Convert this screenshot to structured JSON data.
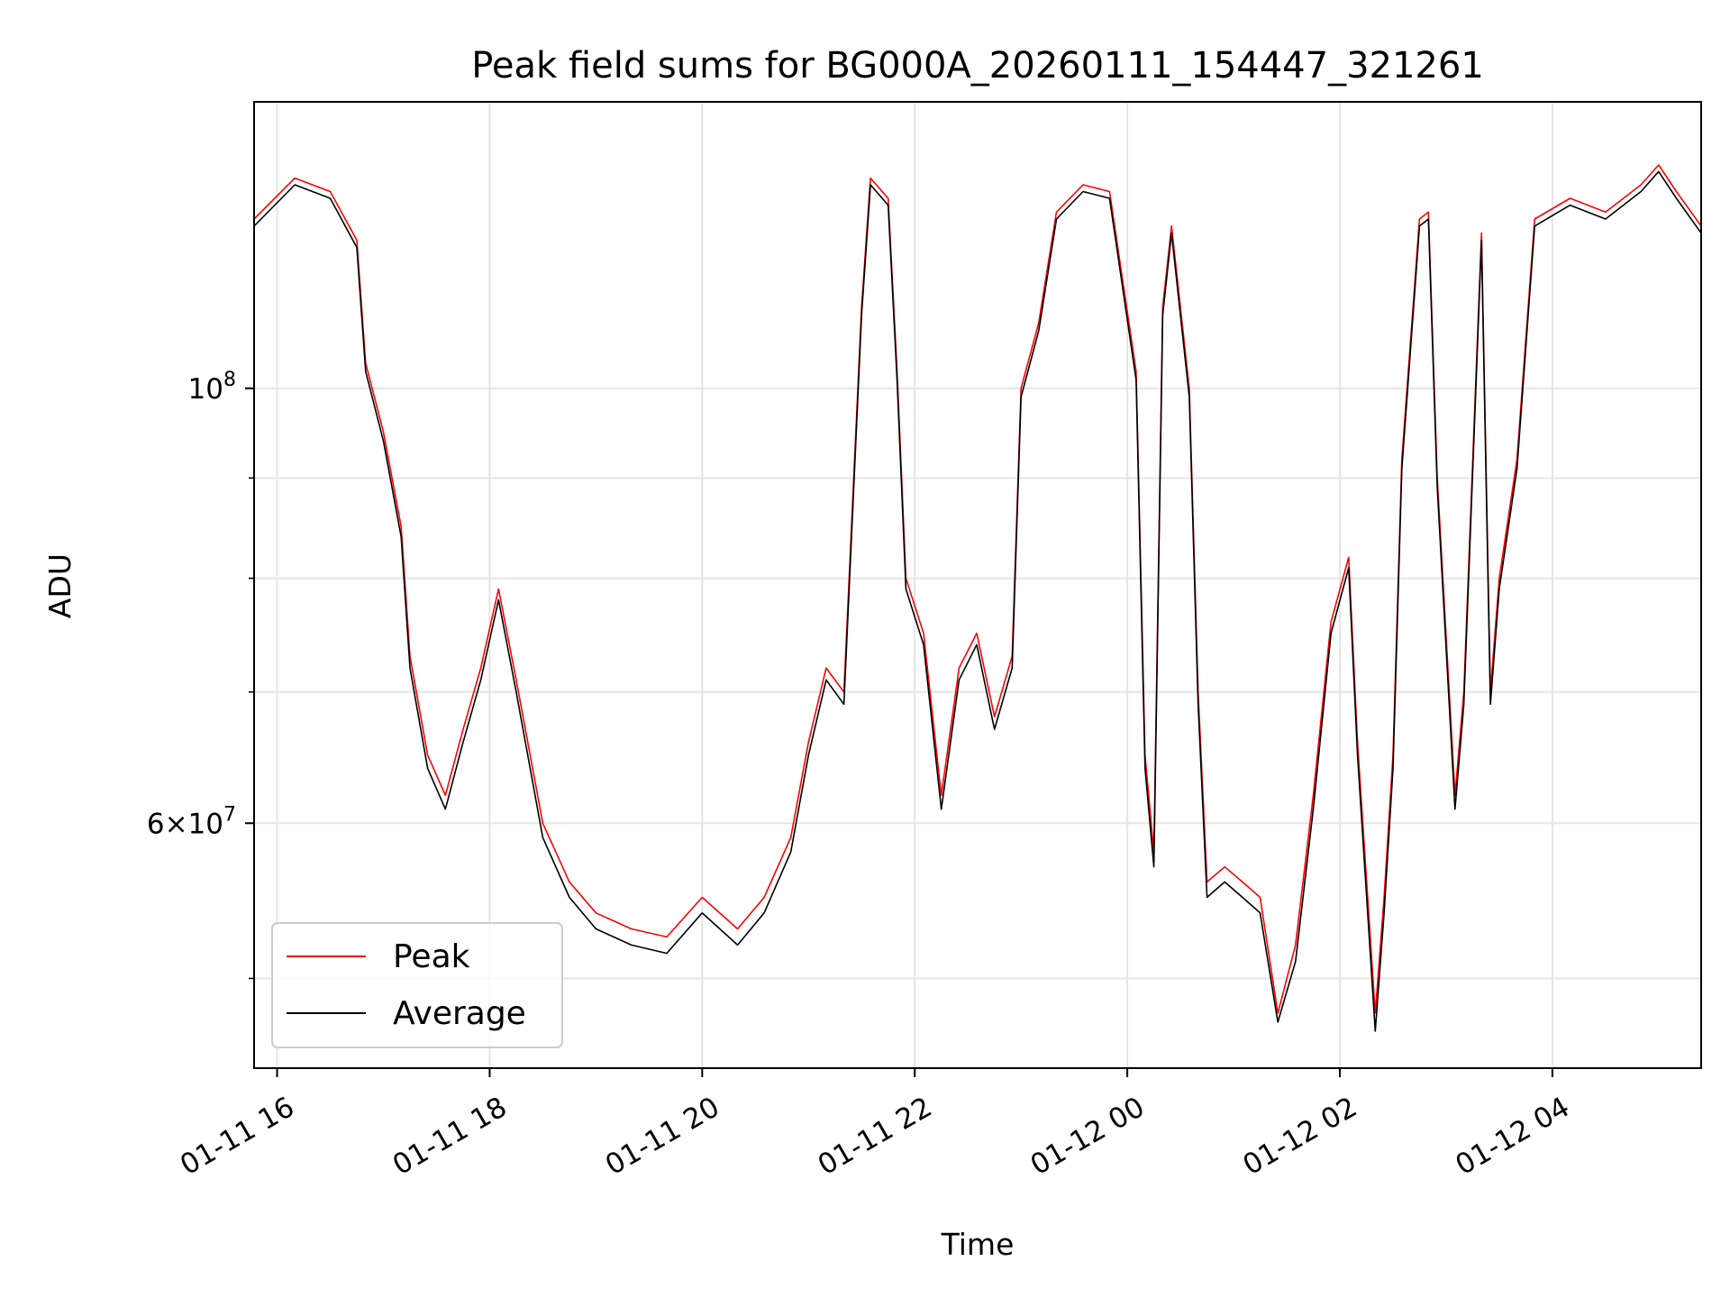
{
  "chart_data": {
    "type": "line",
    "title": "Peak field sums for BG000A_20260111_154447_321261",
    "xlabel": "Time",
    "ylabel": "ADU",
    "yscale": "log",
    "xlim": [
      "2026-01-11 15:47",
      "2026-01-12 05:24"
    ],
    "ylim": [
      45000000,
      140000000
    ],
    "grid": true,
    "legend": {
      "placement": "lower-left",
      "entries": [
        "Peak",
        "Average"
      ]
    },
    "x_ticks": [
      {
        "value": "2026-01-11 16:00",
        "label": "01-11 16"
      },
      {
        "value": "2026-01-11 18:00",
        "label": "01-11 18"
      },
      {
        "value": "2026-01-11 20:00",
        "label": "01-11 20"
      },
      {
        "value": "2026-01-11 22:00",
        "label": "01-11 22"
      },
      {
        "value": "2026-01-12 00:00",
        "label": "01-12 00"
      },
      {
        "value": "2026-01-12 02:00",
        "label": "01-12 02"
      },
      {
        "value": "2026-01-12 04:00",
        "label": "01-12 04"
      }
    ],
    "y_ticks_major": [
      {
        "value": 60000000,
        "label_mantissa": "6×10",
        "label_exp": "7"
      },
      {
        "value": 100000000,
        "label_mantissa": "10",
        "label_exp": "8"
      }
    ],
    "y_ticks_minor": [
      50000000,
      70000000,
      80000000,
      90000000
    ],
    "colors": {
      "peak": "#ff0000",
      "average": "#000000",
      "grid": "#e5e5e5"
    },
    "series": [
      {
        "name": "Peak",
        "x": [
          "2026-01-11 15:47",
          "2026-01-11 16:10",
          "2026-01-11 16:30",
          "2026-01-11 16:45",
          "2026-01-11 16:50",
          "2026-01-11 17:00",
          "2026-01-11 17:10",
          "2026-01-11 17:15",
          "2026-01-11 17:25",
          "2026-01-11 17:35",
          "2026-01-11 17:45",
          "2026-01-11 17:55",
          "2026-01-11 18:05",
          "2026-01-11 18:15",
          "2026-01-11 18:30",
          "2026-01-11 18:45",
          "2026-01-11 19:00",
          "2026-01-11 19:20",
          "2026-01-11 19:40",
          "2026-01-11 20:00",
          "2026-01-11 20:20",
          "2026-01-11 20:35",
          "2026-01-11 20:50",
          "2026-01-11 21:00",
          "2026-01-11 21:10",
          "2026-01-11 21:20",
          "2026-01-11 21:30",
          "2026-01-11 21:35",
          "2026-01-11 21:45",
          "2026-01-11 21:50",
          "2026-01-11 21:55",
          "2026-01-11 22:05",
          "2026-01-11 22:15",
          "2026-01-11 22:25",
          "2026-01-11 22:35",
          "2026-01-11 22:45",
          "2026-01-11 22:55",
          "2026-01-11 23:00",
          "2026-01-11 23:10",
          "2026-01-11 23:20",
          "2026-01-11 23:35",
          "2026-01-11 23:50",
          "2026-01-12 00:05",
          "2026-01-12 00:10",
          "2026-01-12 00:15",
          "2026-01-12 00:20",
          "2026-01-12 00:25",
          "2026-01-12 00:35",
          "2026-01-12 00:40",
          "2026-01-12 00:45",
          "2026-01-12 00:55",
          "2026-01-12 01:05",
          "2026-01-12 01:15",
          "2026-01-12 01:25",
          "2026-01-12 01:35",
          "2026-01-12 01:45",
          "2026-01-12 01:55",
          "2026-01-12 02:05",
          "2026-01-12 02:10",
          "2026-01-12 02:20",
          "2026-01-12 02:25",
          "2026-01-12 02:30",
          "2026-01-12 02:35",
          "2026-01-12 02:45",
          "2026-01-12 02:50",
          "2026-01-12 02:55",
          "2026-01-12 03:05",
          "2026-01-12 03:10",
          "2026-01-12 03:20",
          "2026-01-12 03:25",
          "2026-01-12 03:30",
          "2026-01-12 03:40",
          "2026-01-12 03:50",
          "2026-01-12 04:10",
          "2026-01-12 04:30",
          "2026-01-12 04:50",
          "2026-01-12 05:00",
          "2026-01-12 05:10",
          "2026-01-12 05:24"
        ],
        "values": [
          122000000,
          128000000,
          126000000,
          119000000,
          103000000,
          95000000,
          85000000,
          73000000,
          65000000,
          62000000,
          67000000,
          72000000,
          79000000,
          71000000,
          60000000,
          56000000,
          54000000,
          53000000,
          52500000,
          55000000,
          53000000,
          55000000,
          59000000,
          66000000,
          72000000,
          70000000,
          110000000,
          128000000,
          125000000,
          102000000,
          80000000,
          75000000,
          62000000,
          72000000,
          75000000,
          68000000,
          73000000,
          100000000,
          108000000,
          123000000,
          127000000,
          126000000,
          102000000,
          65000000,
          58000000,
          110000000,
          121000000,
          100000000,
          70000000,
          56000000,
          57000000,
          56000000,
          55000000,
          48000000,
          52000000,
          62000000,
          76000000,
          82000000,
          66000000,
          48000000,
          55000000,
          65000000,
          92000000,
          122000000,
          123000000,
          90000000,
          62000000,
          70000000,
          120000000,
          70000000,
          80000000,
          92000000,
          122000000,
          125000000,
          123000000,
          127000000,
          130000000,
          126000000,
          121000000
        ]
      },
      {
        "name": "Average",
        "x": [
          "2026-01-11 15:47",
          "2026-01-11 16:10",
          "2026-01-11 16:30",
          "2026-01-11 16:45",
          "2026-01-11 16:50",
          "2026-01-11 17:00",
          "2026-01-11 17:10",
          "2026-01-11 17:15",
          "2026-01-11 17:25",
          "2026-01-11 17:35",
          "2026-01-11 17:45",
          "2026-01-11 17:55",
          "2026-01-11 18:05",
          "2026-01-11 18:15",
          "2026-01-11 18:30",
          "2026-01-11 18:45",
          "2026-01-11 19:00",
          "2026-01-11 19:20",
          "2026-01-11 19:40",
          "2026-01-11 20:00",
          "2026-01-11 20:20",
          "2026-01-11 20:35",
          "2026-01-11 20:50",
          "2026-01-11 21:00",
          "2026-01-11 21:10",
          "2026-01-11 21:20",
          "2026-01-11 21:30",
          "2026-01-11 21:35",
          "2026-01-11 21:45",
          "2026-01-11 21:50",
          "2026-01-11 21:55",
          "2026-01-11 22:05",
          "2026-01-11 22:15",
          "2026-01-11 22:25",
          "2026-01-11 22:35",
          "2026-01-11 22:45",
          "2026-01-11 22:55",
          "2026-01-11 23:00",
          "2026-01-11 23:10",
          "2026-01-11 23:20",
          "2026-01-11 23:35",
          "2026-01-11 23:50",
          "2026-01-12 00:05",
          "2026-01-12 00:10",
          "2026-01-12 00:15",
          "2026-01-12 00:20",
          "2026-01-12 00:25",
          "2026-01-12 00:35",
          "2026-01-12 00:40",
          "2026-01-12 00:45",
          "2026-01-12 00:55",
          "2026-01-12 01:05",
          "2026-01-12 01:15",
          "2026-01-12 01:25",
          "2026-01-12 01:35",
          "2026-01-12 01:45",
          "2026-01-12 01:55",
          "2026-01-12 02:05",
          "2026-01-12 02:10",
          "2026-01-12 02:20",
          "2026-01-12 02:25",
          "2026-01-12 02:30",
          "2026-01-12 02:35",
          "2026-01-12 02:45",
          "2026-01-12 02:50",
          "2026-01-12 02:55",
          "2026-01-12 03:05",
          "2026-01-12 03:10",
          "2026-01-12 03:20",
          "2026-01-12 03:25",
          "2026-01-12 03:30",
          "2026-01-12 03:40",
          "2026-01-12 03:50",
          "2026-01-12 04:10",
          "2026-01-12 04:30",
          "2026-01-12 04:50",
          "2026-01-12 05:00",
          "2026-01-12 05:10",
          "2026-01-12 05:24"
        ],
        "values": [
          121000000,
          127000000,
          125000000,
          118000000,
          102000000,
          94000000,
          84000000,
          72000000,
          64000000,
          61000000,
          66000000,
          71000000,
          78000000,
          70000000,
          59000000,
          55000000,
          53000000,
          52000000,
          51500000,
          54000000,
          52000000,
          54000000,
          58000000,
          65000000,
          71000000,
          69000000,
          109000000,
          127000000,
          124000000,
          101000000,
          79000000,
          74000000,
          61000000,
          71000000,
          74000000,
          67000000,
          72000000,
          99000000,
          107000000,
          122000000,
          126000000,
          125000000,
          101000000,
          64000000,
          57000000,
          109000000,
          120000000,
          99000000,
          69000000,
          55000000,
          56000000,
          55000000,
          54000000,
          47500000,
          51000000,
          61000000,
          75000000,
          81000000,
          65000000,
          47000000,
          54000000,
          64000000,
          91000000,
          121000000,
          122000000,
          89000000,
          61000000,
          69000000,
          119000000,
          69000000,
          79000000,
          91000000,
          121000000,
          124000000,
          122000000,
          126000000,
          129000000,
          125000000,
          120000000
        ]
      }
    ]
  }
}
